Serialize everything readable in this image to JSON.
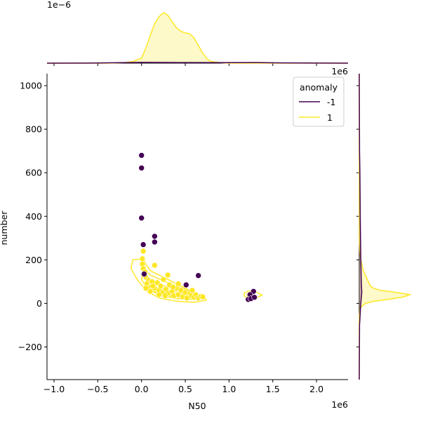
{
  "chart_data": {
    "type": "scatter",
    "title": "",
    "xlabel": "N50",
    "ylabel": "number",
    "x_offset_label": "1e6",
    "y_offset_label": "1e6",
    "top_marginal_offset_label": "1e−6",
    "xlim": [
      -1.08,
      2.36
    ],
    "ylim": [
      -350,
      1055
    ],
    "x_ticks": [
      -1.0,
      -0.5,
      0.0,
      0.5,
      1.0,
      1.5,
      2.0
    ],
    "x_tick_labels": [
      "−1.0",
      "−0.5",
      "0.0",
      "0.5",
      "1.0",
      "1.5",
      "2.0"
    ],
    "y_ticks": [
      -200,
      0,
      200,
      400,
      600,
      800,
      1000
    ],
    "y_tick_labels": [
      "−200",
      "0",
      "200",
      "400",
      "600",
      "800",
      "1000"
    ],
    "grid": false,
    "legend": {
      "title": "anomaly",
      "placement": "top-right",
      "entries": [
        {
          "label": "-1",
          "color": "#440154"
        },
        {
          "label": "1",
          "color": "#fde725"
        }
      ]
    },
    "series": [
      {
        "name": "-1",
        "color": "#440154",
        "points": [
          [
            0.0,
            680
          ],
          [
            0.0,
            622
          ],
          [
            0.0,
            392
          ],
          [
            0.02,
            270
          ],
          [
            0.15,
            308
          ],
          [
            0.15,
            282
          ],
          [
            0.03,
            135
          ],
          [
            0.65,
            128
          ],
          [
            0.51,
            85
          ],
          [
            1.28,
            55
          ],
          [
            1.22,
            18
          ],
          [
            1.24,
            40
          ],
          [
            1.25,
            22
          ],
          [
            1.29,
            28
          ]
        ]
      },
      {
        "name": "1",
        "color": "#fde725",
        "points": [
          [
            0.02,
            240
          ],
          [
            0.01,
            205
          ],
          [
            0.01,
            180
          ],
          [
            0.02,
            160
          ],
          [
            0.04,
            145
          ],
          [
            0.05,
            120
          ],
          [
            0.08,
            105
          ],
          [
            0.06,
            90
          ],
          [
            0.1,
            75
          ],
          [
            0.12,
            100
          ],
          [
            0.15,
            70
          ],
          [
            0.18,
            95
          ],
          [
            0.2,
            60
          ],
          [
            0.22,
            80
          ],
          [
            0.24,
            50
          ],
          [
            0.25,
            110
          ],
          [
            0.28,
            65
          ],
          [
            0.3,
            45
          ],
          [
            0.32,
            85
          ],
          [
            0.35,
            55
          ],
          [
            0.37,
            35
          ],
          [
            0.4,
            70
          ],
          [
            0.42,
            40
          ],
          [
            0.45,
            60
          ],
          [
            0.47,
            30
          ],
          [
            0.5,
            50
          ],
          [
            0.52,
            25
          ],
          [
            0.55,
            45
          ],
          [
            0.57,
            35
          ],
          [
            0.6,
            28
          ],
          [
            0.62,
            40
          ],
          [
            0.65,
            25
          ],
          [
            0.68,
            32
          ],
          [
            0.7,
            30
          ],
          [
            0.3,
            130
          ],
          [
            0.15,
            175
          ],
          [
            0.42,
            90
          ],
          [
            0.2,
            40
          ],
          [
            0.1,
            55
          ],
          [
            0.13,
            80
          ],
          [
            0.05,
            70
          ],
          [
            0.36,
            75
          ],
          [
            0.27,
            35
          ],
          [
            0.58,
            60
          ],
          [
            1.23,
            38
          ],
          [
            1.26,
            48
          ]
        ]
      }
    ],
    "marginals": {
      "top": {
        "series": [
          {
            "name": "1",
            "color": "#fde725",
            "x": [
              -1.08,
              -0.4,
              -0.2,
              -0.1,
              0.0,
              0.05,
              0.1,
              0.15,
              0.2,
              0.25,
              0.3,
              0.35,
              0.4,
              0.45,
              0.5,
              0.55,
              0.6,
              0.65,
              0.7,
              0.75,
              0.8,
              0.9,
              1.0,
              1.2,
              1.3,
              1.5,
              2.36
            ],
            "density": [
              0.0,
              0.0,
              0.01,
              0.03,
              0.1,
              0.3,
              0.55,
              0.78,
              0.92,
              1.0,
              0.95,
              0.82,
              0.7,
              0.63,
              0.6,
              0.58,
              0.5,
              0.35,
              0.2,
              0.08,
              0.03,
              0.01,
              0.0,
              0.0,
              0.0,
              0.0,
              0.0
            ]
          },
          {
            "name": "-1",
            "color": "#440154",
            "x": [
              -1.08,
              -0.5,
              0.0,
              0.5,
              1.0,
              1.3,
              1.6,
              2.36
            ],
            "density": [
              0.0,
              0.003,
              0.015,
              0.012,
              0.01,
              0.013,
              0.006,
              0.0
            ]
          }
        ]
      },
      "right": {
        "series": [
          {
            "name": "1",
            "color": "#fde725",
            "y": [
              -350,
              -60,
              -20,
              0,
              10,
              20,
              30,
              40,
              50,
              60,
              70,
              80,
              100,
              120,
              140,
              160,
              180,
              200,
              240,
              300,
              1055
            ],
            "density": [
              0.0,
              0.0,
              0.02,
              0.12,
              0.3,
              0.62,
              0.88,
              1.0,
              0.75,
              0.42,
              0.28,
              0.22,
              0.18,
              0.14,
              0.1,
              0.07,
              0.05,
              0.03,
              0.01,
              0.0,
              0.0
            ]
          },
          {
            "name": "-1",
            "color": "#440154",
            "y": [
              -350,
              -100,
              0,
              50,
              100,
              200,
              300,
              400,
              600,
              700,
              1055
            ],
            "density": [
              0.0,
              0.005,
              0.03,
              0.05,
              0.04,
              0.03,
              0.025,
              0.02,
              0.012,
              0.006,
              0.0
            ]
          }
        ]
      }
    }
  }
}
